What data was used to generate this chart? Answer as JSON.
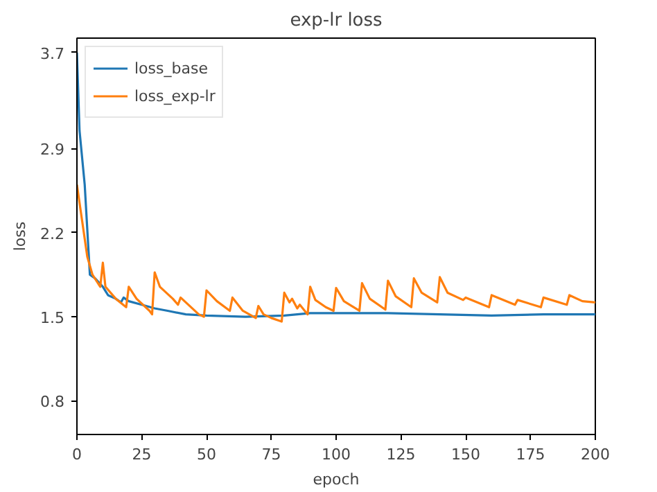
{
  "chart_data": {
    "type": "line",
    "title": "exp-lr loss",
    "xlabel": "epoch",
    "ylabel": "loss",
    "xlim": [
      0,
      200
    ],
    "xticks": [
      0,
      25,
      50,
      75,
      100,
      125,
      150,
      175,
      200
    ],
    "ylim": [
      0.52,
      3.82
    ],
    "yticks": [
      0.8,
      1.5,
      2.2,
      2.9,
      3.7
    ],
    "grid": false,
    "legend": "top left",
    "line_style": "solid",
    "series": [
      {
        "name": "loss_base",
        "color": "#1f77b4",
        "x": [
          0,
          1,
          3,
          5,
          7,
          10,
          12,
          15,
          17,
          18,
          20,
          25,
          30,
          35,
          42,
          50,
          65,
          80,
          90,
          100,
          120,
          140,
          160,
          180,
          200
        ],
        "values": [
          3.7,
          3.05,
          2.6,
          1.85,
          1.82,
          1.75,
          1.68,
          1.65,
          1.62,
          1.66,
          1.63,
          1.6,
          1.57,
          1.55,
          1.52,
          1.51,
          1.5,
          1.51,
          1.53,
          1.53,
          1.53,
          1.52,
          1.51,
          1.52,
          1.52
        ]
      },
      {
        "name": "loss_exp-lr",
        "color": "#ff7f0e",
        "x": [
          0,
          2,
          4,
          6,
          9,
          10,
          11,
          15,
          19,
          20,
          23,
          28,
          29,
          30,
          32,
          37,
          39,
          40,
          47,
          49,
          50,
          54,
          59,
          60,
          64,
          69,
          70,
          72,
          75,
          79,
          80,
          82,
          83,
          85,
          86,
          89,
          90,
          92,
          96,
          99,
          100,
          103,
          109,
          110,
          113,
          119,
          120,
          123,
          129,
          130,
          133,
          139,
          140,
          143,
          149,
          150,
          159,
          160,
          169,
          170,
          179,
          180,
          189,
          190,
          195,
          200
        ],
        "values": [
          2.6,
          2.3,
          2.0,
          1.85,
          1.75,
          1.95,
          1.75,
          1.65,
          1.58,
          1.75,
          1.65,
          1.55,
          1.52,
          1.87,
          1.75,
          1.65,
          1.6,
          1.66,
          1.52,
          1.5,
          1.72,
          1.63,
          1.55,
          1.66,
          1.55,
          1.49,
          1.59,
          1.52,
          1.49,
          1.46,
          1.7,
          1.62,
          1.65,
          1.57,
          1.6,
          1.52,
          1.75,
          1.64,
          1.58,
          1.55,
          1.74,
          1.63,
          1.55,
          1.78,
          1.65,
          1.56,
          1.8,
          1.67,
          1.58,
          1.82,
          1.7,
          1.62,
          1.83,
          1.7,
          1.64,
          1.66,
          1.58,
          1.68,
          1.6,
          1.64,
          1.58,
          1.66,
          1.6,
          1.68,
          1.63,
          1.62
        ]
      }
    ]
  }
}
